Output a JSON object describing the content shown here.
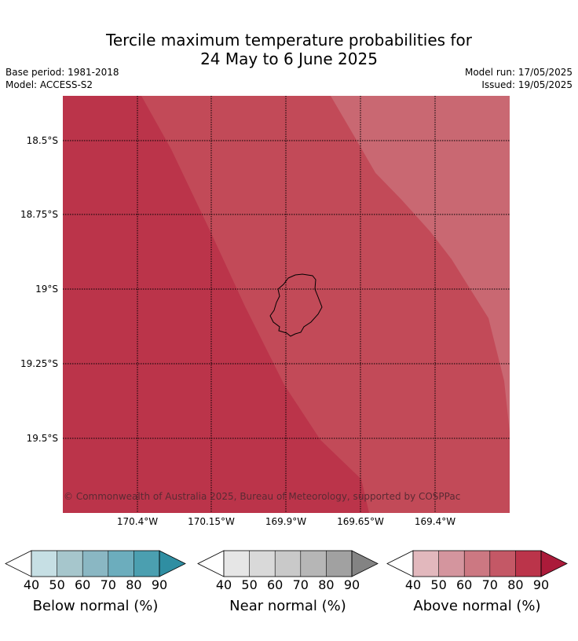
{
  "header": {
    "title_line1": "Tercile maximum temperature probabilities for",
    "title_line2": "24 May to 6 June 2025",
    "base_period": "Base period: 1981-2018",
    "model": "Model: ACCESS-S2",
    "model_run": "Model run: 17/05/2025",
    "issued": "Issued: 19/05/2025"
  },
  "map": {
    "lat_labels": [
      "18.5°S",
      "18.75°S",
      "19°S",
      "19.25°S",
      "19.5°S"
    ],
    "lon_labels": [
      "170.4°W",
      "170.15°W",
      "169.9°W",
      "169.65°W",
      "169.4°W"
    ],
    "copyright": "© Commonwealth of Australia 2025, Bureau of Meteorology, supported by COSPPac",
    "colors": {
      "above_80_90": "#bb344a",
      "above_70_80": "#c24a58",
      "above_60_70": "#c96872"
    }
  },
  "legends": [
    {
      "label": "Below normal (%)",
      "ticks": [
        "40",
        "50",
        "60",
        "70",
        "80",
        "90"
      ],
      "colors": [
        "#ffffff",
        "#c6dfe4",
        "#a6c6cc",
        "#8ab7c3",
        "#6cadbd",
        "#4b9fb0",
        "#2f8ea2"
      ]
    },
    {
      "label": "Near normal (%)",
      "ticks": [
        "40",
        "50",
        "60",
        "70",
        "80",
        "90"
      ],
      "colors": [
        "#ffffff",
        "#e6e6e6",
        "#d9d9d9",
        "#c9c9c9",
        "#b6b6b6",
        "#a1a1a1",
        "#838383"
      ]
    },
    {
      "label": "Above normal (%)",
      "ticks": [
        "40",
        "50",
        "60",
        "70",
        "80",
        "90"
      ],
      "colors": [
        "#ffffff",
        "#e2b8bd",
        "#d4959e",
        "#cc7882",
        "#c45866",
        "#bb344a",
        "#ab1b3a"
      ]
    }
  ]
}
